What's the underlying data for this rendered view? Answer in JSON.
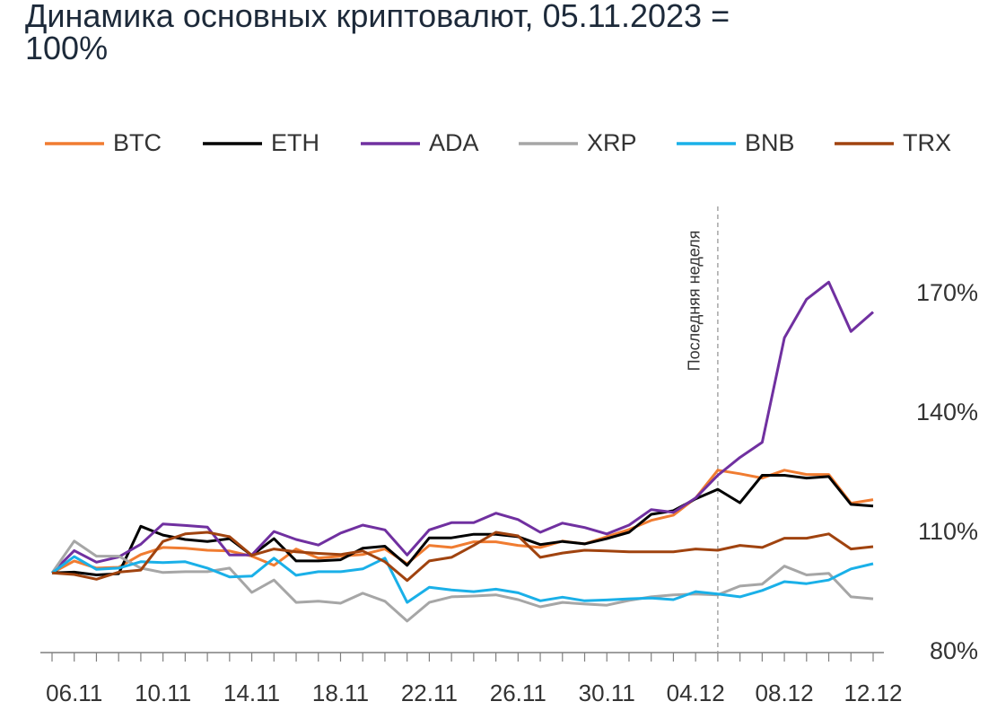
{
  "chart_data": {
    "type": "line",
    "title": "Динамика основных криптовалют, 05.11.2023 = 100%",
    "categories": [
      null,
      "06.11",
      null,
      null,
      null,
      "10.11",
      null,
      null,
      null,
      "14.11",
      null,
      null,
      null,
      "18.11",
      null,
      null,
      null,
      "22.11",
      null,
      null,
      null,
      "26.11",
      null,
      null,
      null,
      "30.11",
      null,
      null,
      null,
      "04.12",
      null,
      null,
      null,
      "08.12",
      null,
      null,
      null,
      "12.12"
    ],
    "series": [
      {
        "name": "BTC",
        "color": "#f07c31",
        "values": [
          100,
          103.0,
          101.2,
          101.4,
          104.6,
          106.4,
          106.2,
          105.7,
          105.5,
          104.2,
          101.9,
          106.0,
          103.7,
          104.2,
          104.6,
          106.0,
          102.3,
          106.9,
          106.4,
          107.8,
          107.8,
          106.9,
          106.4,
          108.0,
          107.3,
          109.1,
          110.9,
          113.2,
          114.5,
          118.8,
          125.8,
          124.9,
          123.8,
          125.8,
          124.7,
          124.7,
          117.5,
          118.4
        ]
      },
      {
        "name": "ETH",
        "color": "#000000",
        "values": [
          100,
          100.2,
          99.5,
          99.8,
          111.7,
          109.5,
          108.4,
          107.9,
          108.6,
          104.4,
          108.6,
          103.0,
          103.0,
          103.3,
          106.2,
          106.7,
          101.9,
          108.8,
          108.8,
          109.7,
          109.7,
          109.1,
          107.1,
          107.9,
          107.3,
          108.6,
          110.2,
          114.7,
          115.6,
          118.6,
          121.0,
          117.6,
          124.5,
          124.5,
          123.8,
          124.2,
          117.2,
          116.8
        ]
      },
      {
        "name": "ADA",
        "color": "#7030a0",
        "values": [
          100,
          105.6,
          102.7,
          104.0,
          107.2,
          112.3,
          111.9,
          111.5,
          104.5,
          104.5,
          110.4,
          108.4,
          107.0,
          110.0,
          112.0,
          110.8,
          104.5,
          110.8,
          112.6,
          112.6,
          115.0,
          113.4,
          110.2,
          112.5,
          111.4,
          109.8,
          112.0,
          115.9,
          115.2,
          118.8,
          124.5,
          129.0,
          132.8,
          159.0,
          168.7,
          173.0,
          160.6,
          165.5
        ]
      },
      {
        "name": "XRP",
        "color": "#a6a6a6",
        "values": [
          100,
          108.0,
          104.2,
          104.2,
          101.2,
          100.1,
          100.3,
          100.3,
          101.2,
          95.1,
          98.2,
          92.6,
          92.9,
          92.4,
          94.9,
          92.9,
          87.9,
          92.6,
          94.0,
          94.2,
          94.5,
          93.3,
          91.5,
          92.6,
          92.2,
          91.9,
          93.1,
          94.0,
          94.5,
          94.7,
          94.5,
          96.7,
          97.2,
          101.7,
          99.5,
          99.9,
          94.0,
          93.5
        ]
      },
      {
        "name": "BNB",
        "color": "#1ab0e8",
        "values": [
          100,
          104.1,
          100.9,
          101.2,
          102.8,
          102.6,
          102.8,
          101.2,
          99.0,
          99.2,
          103.7,
          99.4,
          100.3,
          100.3,
          101.0,
          103.7,
          92.6,
          96.4,
          95.7,
          95.3,
          95.9,
          95.0,
          93.0,
          93.9,
          93.0,
          93.2,
          93.5,
          93.7,
          93.3,
          95.3,
          94.7,
          94.0,
          95.6,
          97.8,
          97.3,
          98.2,
          101.0,
          102.3
        ]
      },
      {
        "name": "TRX",
        "color": "#a0430f",
        "values": [
          100,
          99.6,
          98.4,
          100.2,
          100.7,
          107.9,
          109.8,
          110.2,
          109.1,
          104.4,
          106.0,
          105.3,
          104.9,
          104.6,
          105.5,
          102.8,
          98.1,
          103.0,
          103.9,
          106.9,
          110.2,
          109.3,
          103.9,
          105.0,
          105.7,
          105.5,
          105.3,
          105.3,
          105.3,
          106.0,
          105.7,
          106.9,
          106.4,
          108.7,
          108.7,
          109.8,
          106.0,
          106.6
        ]
      }
    ],
    "ylim": [
      80,
      192
    ],
    "yticks": [
      {
        "value": 80,
        "label": "80%"
      },
      {
        "value": 110,
        "label": "110%"
      },
      {
        "value": 140,
        "label": "140%"
      },
      {
        "value": 170,
        "label": "170%"
      }
    ],
    "annotation": {
      "text": "Последняя неделя",
      "index": 30
    },
    "legend": "top"
  }
}
